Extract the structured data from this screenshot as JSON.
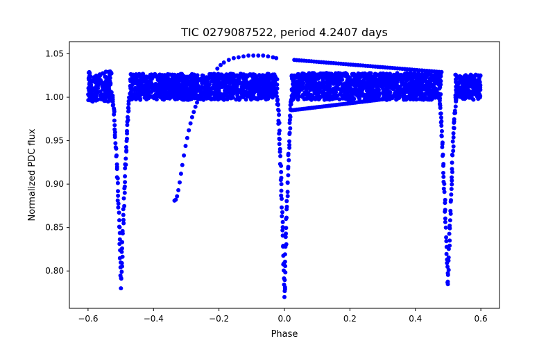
{
  "chart_data": {
    "type": "scatter",
    "title": "TIC 0279087522, period 4.2407 days",
    "xlabel": "Phase",
    "ylabel": "Normalized PDC flux",
    "xlim": [
      -0.657,
      0.657
    ],
    "ylim": [
      0.757,
      1.064
    ],
    "xticks": [
      -0.6,
      -0.4,
      -0.2,
      0.0,
      0.2,
      0.4,
      0.6
    ],
    "xtick_labels": [
      "−0.6",
      "−0.4",
      "−0.2",
      "0.0",
      "0.2",
      "0.4",
      "0.6"
    ],
    "yticks": [
      0.8,
      0.85,
      0.9,
      0.95,
      1.0,
      1.05
    ],
    "ytick_labels": [
      "0.80",
      "0.85",
      "0.90",
      "0.95",
      "1.00",
      "1.05"
    ],
    "grid": false,
    "marker_color": "#0000ff",
    "baseline_bands": [
      {
        "x": [
          -0.6,
          -0.528
        ],
        "flux": [
          0.995,
          1.03
        ]
      },
      {
        "x": [
          -0.472,
          -0.022
        ],
        "flux": [
          0.997,
          1.027
        ]
      },
      {
        "x": [
          0.022,
          0.478
        ],
        "flux": [
          0.997,
          1.028
        ]
      },
      {
        "x": [
          0.522,
          0.6
        ],
        "flux": [
          0.997,
          1.026
        ]
      }
    ],
    "eclipses": [
      {
        "name": "secondary-left",
        "center": -0.499,
        "min_flux": 0.783,
        "half_width": 0.026
      },
      {
        "name": "primary",
        "center": 0.0,
        "min_flux": 0.77,
        "half_width": 0.022
      },
      {
        "name": "secondary-right",
        "center": 0.499,
        "min_flux": 0.783,
        "half_width": 0.026
      }
    ],
    "trail_points": [
      [
        -0.336,
        0.881
      ],
      [
        -0.332,
        0.882
      ],
      [
        -0.328,
        0.886
      ],
      [
        -0.324,
        0.893
      ],
      [
        -0.32,
        0.902
      ],
      [
        -0.316,
        0.912
      ],
      [
        -0.312,
        0.922
      ],
      [
        -0.307,
        0.933
      ],
      [
        -0.302,
        0.944
      ],
      [
        -0.297,
        0.953
      ],
      [
        -0.292,
        0.962
      ],
      [
        -0.287,
        0.97
      ],
      [
        -0.282,
        0.977
      ],
      [
        -0.277,
        0.983
      ],
      [
        -0.272,
        0.989
      ],
      [
        -0.267,
        0.994
      ],
      [
        -0.262,
        0.998
      ]
    ],
    "arc_points": [
      [
        -0.215,
        1.027
      ],
      [
        -0.205,
        1.033
      ],
      [
        -0.195,
        1.037
      ],
      [
        -0.185,
        1.04
      ],
      [
        -0.17,
        1.043
      ],
      [
        -0.155,
        1.045
      ],
      [
        -0.14,
        1.046
      ],
      [
        -0.125,
        1.047
      ],
      [
        -0.11,
        1.048
      ],
      [
        -0.095,
        1.048
      ],
      [
        -0.08,
        1.048
      ],
      [
        -0.065,
        1.048
      ],
      [
        -0.05,
        1.047
      ],
      [
        -0.035,
        1.046
      ],
      [
        -0.025,
        1.045
      ]
    ],
    "upper_drift": {
      "x": [
        0.03,
        0.48
      ],
      "flux": [
        1.043,
        1.029
      ]
    },
    "lower_drift": {
      "x": [
        0.022,
        0.33
      ],
      "flux": [
        0.985,
        0.999
      ]
    }
  }
}
